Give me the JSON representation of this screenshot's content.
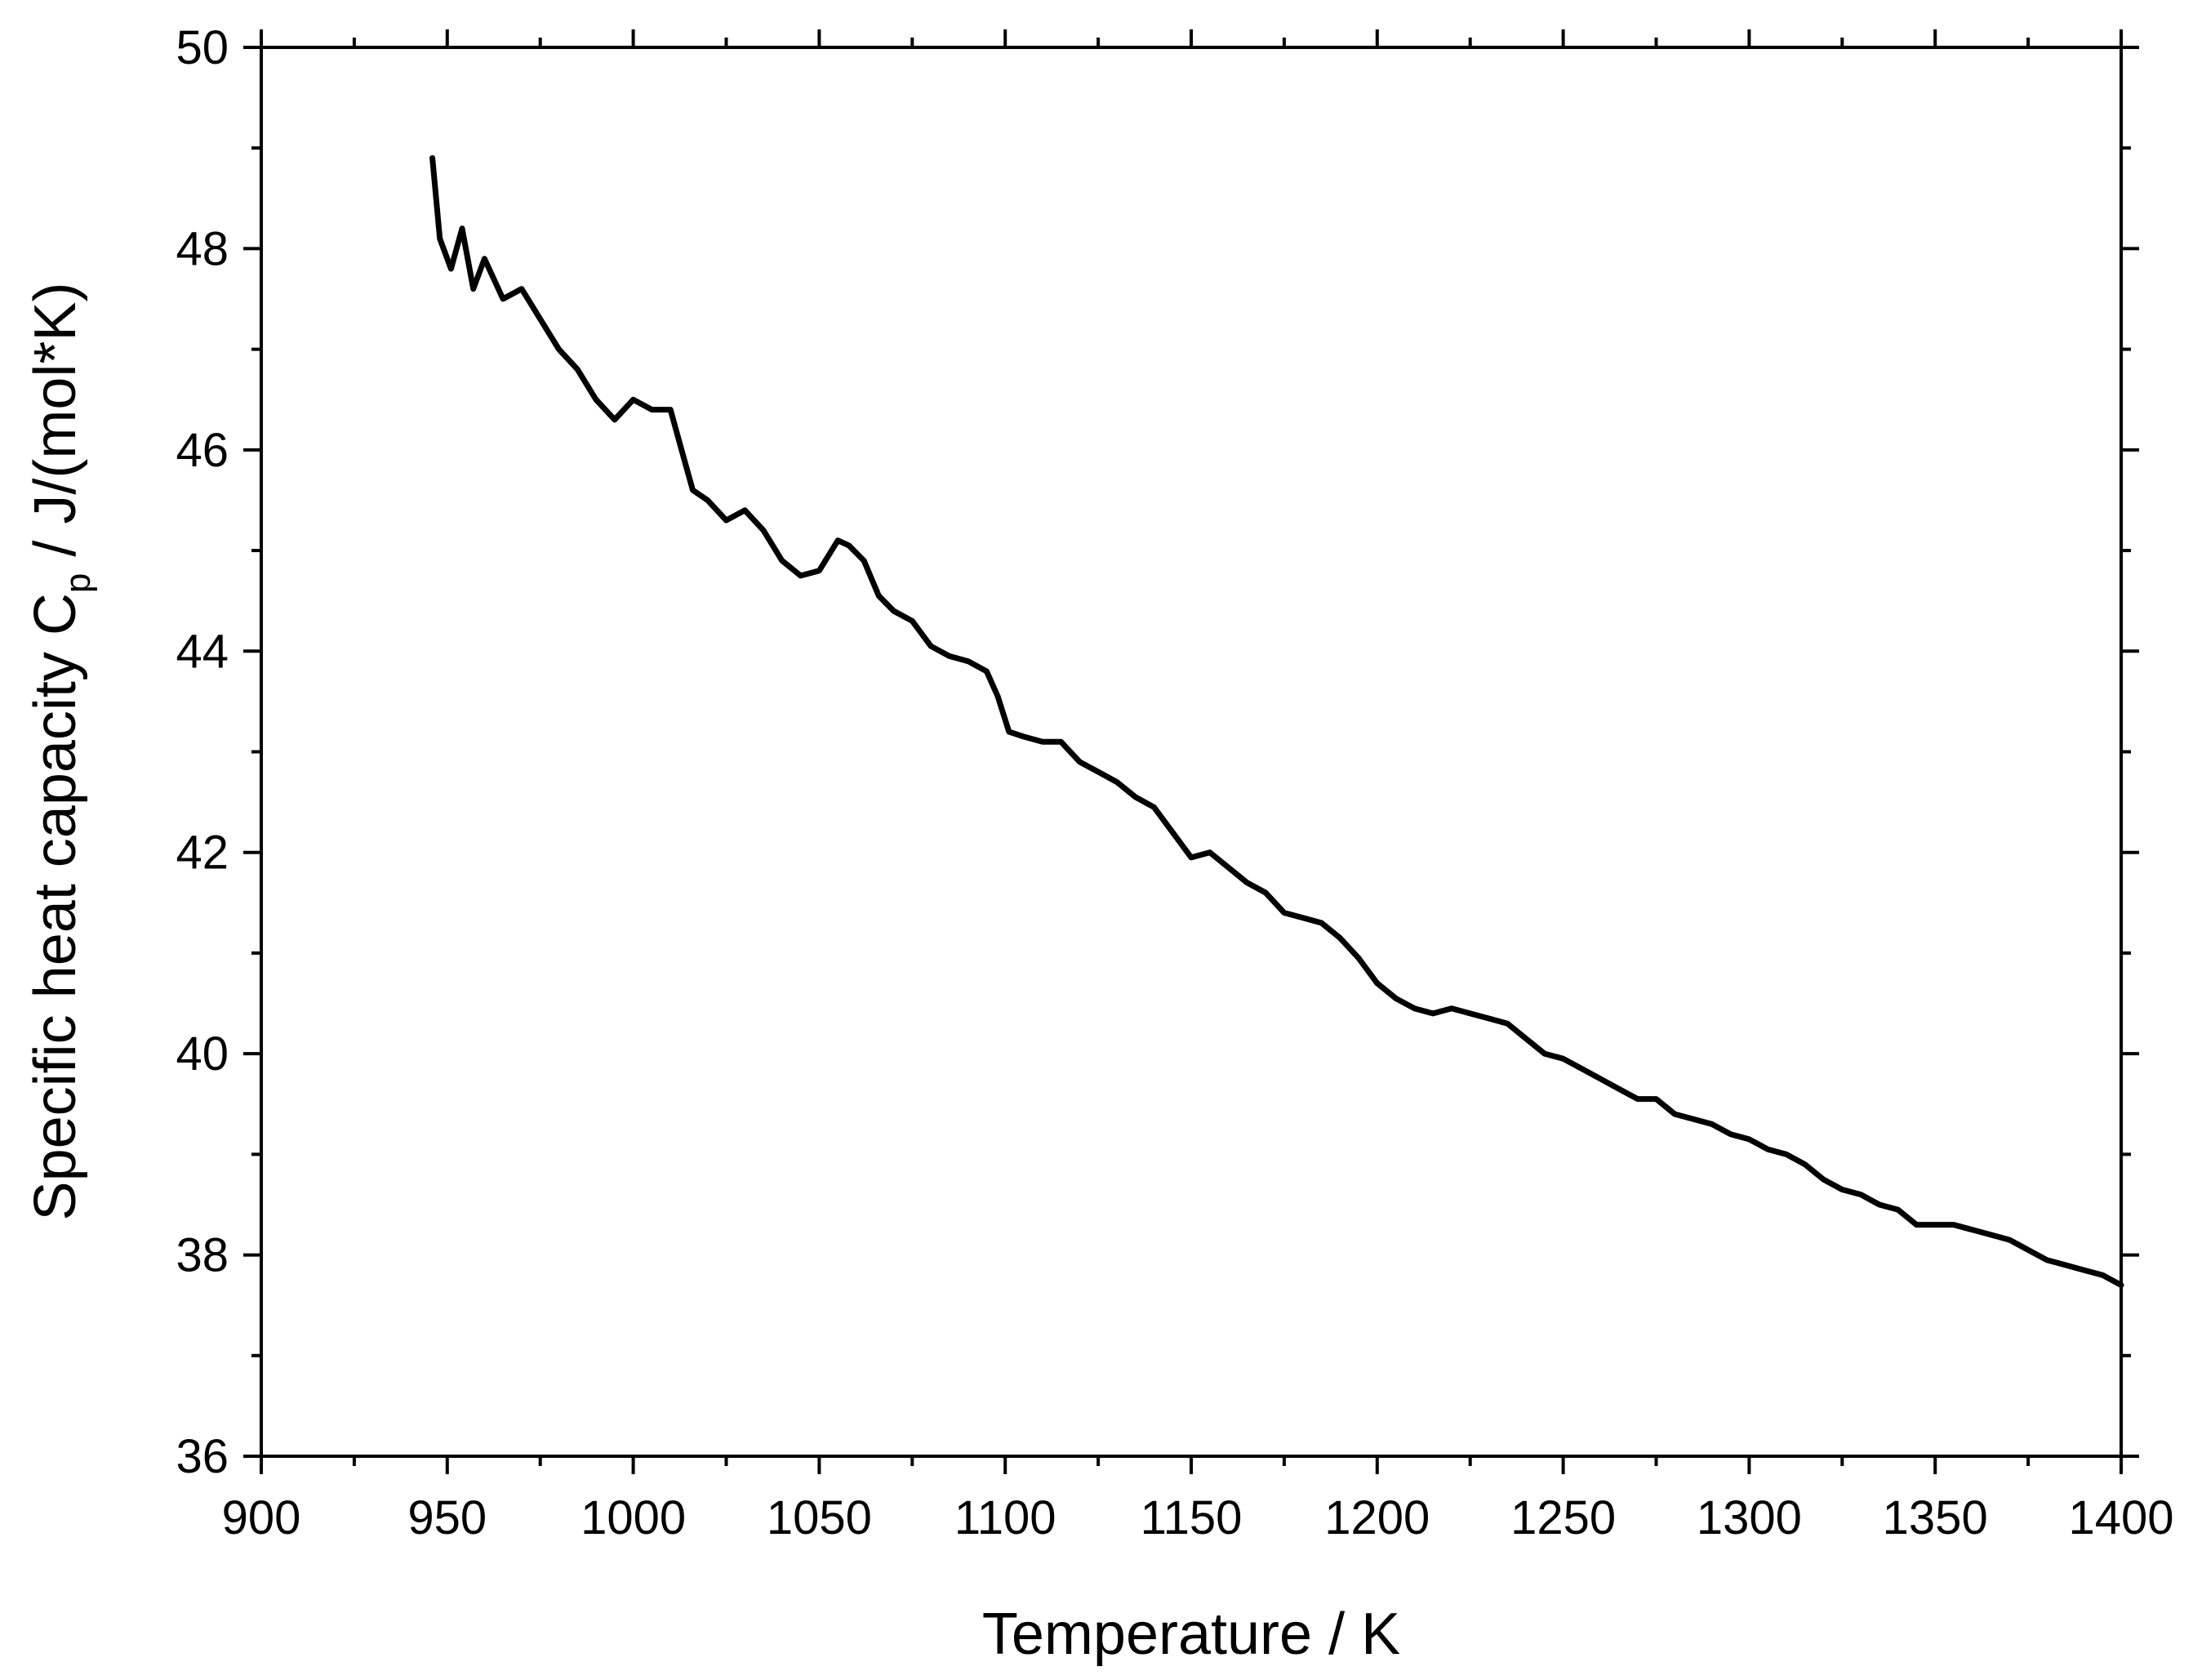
{
  "chart_data": {
    "type": "line",
    "title": "",
    "xlabel": "Temperature / K",
    "ylabel_parts": {
      "prefix": "Specific heat capacity C",
      "subscript": "p",
      "suffix": " / J/(mol*K)"
    },
    "xlim": [
      900,
      1400
    ],
    "ylim": [
      36,
      50
    ],
    "x_ticks": [
      "900",
      "950",
      "1000",
      "1050",
      "1100",
      "1150",
      "1200",
      "1250",
      "1300",
      "1350",
      "1400"
    ],
    "y_ticks": [
      "36",
      "38",
      "40",
      "42",
      "44",
      "46",
      "48",
      "50"
    ],
    "x_tick_values": [
      900,
      950,
      1000,
      1050,
      1100,
      1150,
      1200,
      1250,
      1300,
      1350,
      1400
    ],
    "y_tick_values": [
      36,
      38,
      40,
      42,
      44,
      46,
      48,
      50
    ],
    "grid": false,
    "line_color": "#000000",
    "series": [
      {
        "name": "",
        "x": [
          946,
          948,
          951,
          954,
          957,
          960,
          965,
          970,
          975,
          980,
          985,
          990,
          995,
          1000,
          1005,
          1010,
          1013,
          1016,
          1020,
          1025,
          1030,
          1035,
          1040,
          1045,
          1050,
          1055,
          1058,
          1062,
          1066,
          1070,
          1075,
          1080,
          1085,
          1090,
          1095,
          1098,
          1101,
          1105,
          1110,
          1115,
          1120,
          1125,
          1130,
          1135,
          1140,
          1145,
          1150,
          1155,
          1160,
          1165,
          1170,
          1175,
          1180,
          1185,
          1190,
          1195,
          1200,
          1205,
          1210,
          1215,
          1220,
          1225,
          1230,
          1235,
          1240,
          1245,
          1250,
          1255,
          1260,
          1265,
          1270,
          1275,
          1280,
          1285,
          1290,
          1295,
          1300,
          1305,
          1310,
          1315,
          1320,
          1325,
          1330,
          1335,
          1340,
          1345,
          1350,
          1355,
          1360,
          1365,
          1370,
          1375,
          1380,
          1385,
          1390,
          1395,
          1400
        ],
        "y": [
          48.9,
          48.1,
          47.8,
          48.2,
          47.6,
          47.9,
          47.5,
          47.6,
          47.3,
          47.0,
          46.8,
          46.5,
          46.3,
          46.5,
          46.4,
          46.4,
          46.0,
          45.6,
          45.5,
          45.3,
          45.4,
          45.2,
          44.9,
          44.75,
          44.8,
          45.1,
          45.05,
          44.9,
          44.55,
          44.4,
          44.3,
          44.05,
          43.95,
          43.9,
          43.8,
          43.55,
          43.2,
          43.15,
          43.1,
          43.1,
          42.9,
          42.8,
          42.7,
          42.55,
          42.45,
          42.2,
          41.95,
          42.0,
          41.85,
          41.7,
          41.6,
          41.4,
          41.35,
          41.3,
          41.15,
          40.95,
          40.7,
          40.55,
          40.45,
          40.4,
          40.45,
          40.4,
          40.35,
          40.3,
          40.15,
          40.0,
          39.95,
          39.85,
          39.75,
          39.65,
          39.55,
          39.55,
          39.4,
          39.35,
          39.3,
          39.2,
          39.15,
          39.05,
          39.0,
          38.9,
          38.75,
          38.65,
          38.6,
          38.5,
          38.45,
          38.3,
          38.3,
          38.3,
          38.25,
          38.2,
          38.15,
          38.05,
          37.95,
          37.9,
          37.85,
          37.8,
          37.7
        ]
      }
    ]
  }
}
